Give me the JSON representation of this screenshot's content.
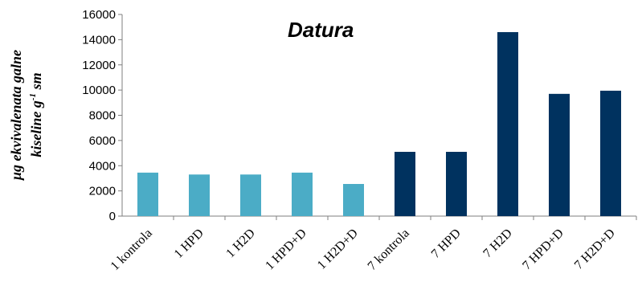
{
  "chart_data": {
    "type": "bar",
    "title": "Datura",
    "ylabel_line1": "μg ekvivalenata galne",
    "ylabel_line2_pre": "kiseline g",
    "ylabel_line2_sup": "-1",
    "ylabel_line2_post": " sm",
    "xlabel": "",
    "categories": [
      "1 kontrola",
      "1 HPD",
      "1 H2D",
      "1 HPD+D",
      "1 H2D+D",
      "7 kontrola",
      "7 HPD",
      "7 H2D",
      "7 HPD+D",
      "7 H2D+D"
    ],
    "values": [
      3450,
      3300,
      3300,
      3450,
      2550,
      5100,
      5100,
      14600,
      9700,
      9950
    ],
    "colors": [
      "#4bacc6",
      "#4bacc6",
      "#4bacc6",
      "#4bacc6",
      "#4bacc6",
      "#00325f",
      "#00325f",
      "#00325f",
      "#00325f",
      "#00325f"
    ],
    "ylim": [
      0,
      16000
    ],
    "yticks": [
      0,
      2000,
      4000,
      6000,
      8000,
      10000,
      12000,
      14000,
      16000
    ],
    "grid": false,
    "legend": "none"
  }
}
